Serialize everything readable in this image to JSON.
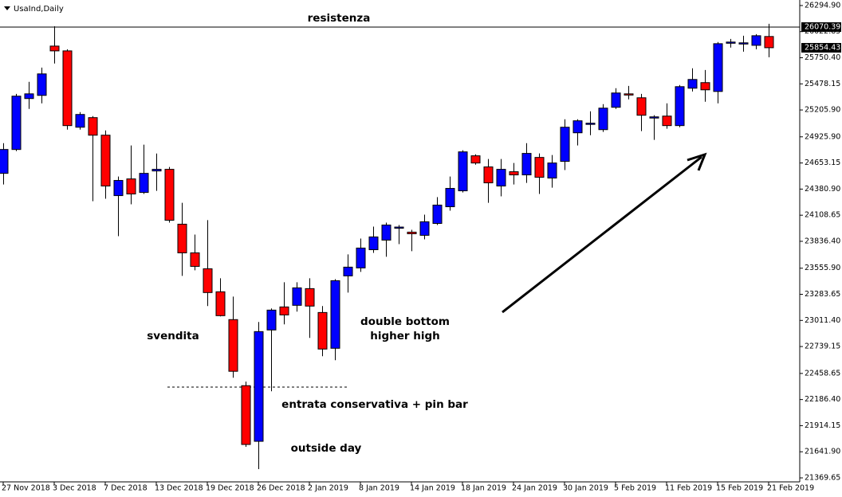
{
  "chart_data": {
    "type": "candlestick",
    "title": "UsaInd,Daily",
    "categories": [
      "27 Nov 2018",
      null,
      null,
      null,
      "3 Dec 2018",
      null,
      null,
      null,
      "7 Dec 2018",
      null,
      null,
      null,
      "13 Dec 2018",
      null,
      null,
      null,
      "19 Dec 2018",
      null,
      null,
      null,
      "26 Dec 2018",
      null,
      null,
      null,
      "2 Jan 2019",
      null,
      null,
      null,
      "8 Jan 2019",
      null,
      null,
      null,
      "14 Jan 2019",
      null,
      null,
      null,
      "18 Jan 2019",
      null,
      null,
      null,
      "24 Jan 2019",
      null,
      null,
      null,
      "30 Jan 2019",
      null,
      null,
      null,
      "5 Feb 2019",
      null,
      null,
      null,
      "11 Feb 2019",
      null,
      null,
      null,
      "15 Feb 2019",
      null,
      null,
      null,
      "21 Feb 2019"
    ],
    "open": [
      24545,
      24794,
      25325,
      25358,
      25872,
      25822,
      25026,
      25126,
      24943,
      24313,
      24487,
      24346,
      24570,
      24587,
      24015,
      23716,
      23550,
      23310,
      23020,
      22331,
      21751,
      22912,
      23152,
      23169,
      23343,
      23094,
      22721,
      23476,
      23559,
      23749,
      23849,
      23980,
      23932,
      23899,
      24023,
      24197,
      24363,
      24728,
      24612,
      24413,
      24562,
      24529,
      24711,
      24496,
      24670,
      24968,
      25060,
      25001,
      25234,
      25374,
      25333,
      25130,
      25142,
      25043,
      25433,
      25491,
      25399,
      25910,
      25902,
      25880,
      25972
    ],
    "high": [
      24860,
      25374,
      25499,
      25648,
      26079,
      25839,
      25184,
      25142,
      24993,
      24512,
      24836,
      24844,
      24752,
      24612,
      24238,
      23907,
      24057,
      23451,
      23260,
      22373,
      22995,
      23136,
      23409,
      23409,
      23451,
      23161,
      23442,
      23700,
      23865,
      23990,
      24031,
      24006,
      23957,
      24114,
      24297,
      24512,
      24786,
      24744,
      24695,
      24695,
      24653,
      24860,
      24753,
      24736,
      25109,
      25109,
      25192,
      25267,
      25433,
      25457,
      25374,
      25151,
      25275,
      25466,
      25640,
      25623,
      25914,
      25947,
      25980,
      25997,
      26104
    ],
    "low": [
      24429,
      24777,
      25217,
      25275,
      25690,
      25001,
      25001,
      24255,
      24280,
      23890,
      24222,
      24330,
      24363,
      24031,
      23476,
      23534,
      23161,
      23053,
      22414,
      21693,
      21461,
      22273,
      22970,
      23103,
      22829,
      22638,
      22597,
      23302,
      23517,
      23716,
      23675,
      23807,
      23733,
      23857,
      24006,
      24156,
      24346,
      24636,
      24238,
      24305,
      24429,
      24446,
      24330,
      24396,
      24579,
      24836,
      24943,
      24977,
      25217,
      25317,
      24985,
      24894,
      25010,
      25026,
      25399,
      25292,
      25275,
      25856,
      25814,
      25839,
      25756
    ],
    "close": [
      24794,
      25350,
      25374,
      25582,
      25822,
      25043,
      25159,
      24943,
      24413,
      24471,
      24330,
      24545,
      24587,
      24056,
      23716,
      23575,
      23302,
      23061,
      22481,
      21718,
      22895,
      23119,
      23069,
      23351,
      23161,
      22713,
      23426,
      23567,
      23766,
      23882,
      24006,
      23985,
      23915,
      24040,
      24214,
      24388,
      24769,
      24653,
      24446,
      24587,
      24529,
      24753,
      24504,
      24653,
      25026,
      25093,
      25068,
      25225,
      25383,
      25366,
      25151,
      25134,
      25043,
      25449,
      25524,
      25416,
      25897,
      25914,
      25906,
      25980,
      25855
    ],
    "up_color": "#0000ff",
    "down_color": "#ff0000",
    "ylim": [
      21328,
      26336
    ],
    "yticks": [
      {
        "value": 26294.9,
        "label": "26294.90"
      },
      {
        "value": 26022.85,
        "label": "26022.85"
      },
      {
        "value": 25750.4,
        "label": "25750.40"
      },
      {
        "value": 25478.15,
        "label": "25478.15"
      },
      {
        "value": 25205.9,
        "label": "25205.90"
      },
      {
        "value": 24925.9,
        "label": "24925.90"
      },
      {
        "value": 24653.15,
        "label": "24653.15"
      },
      {
        "value": 24380.9,
        "label": "24380.90"
      },
      {
        "value": 24108.65,
        "label": "24108.65"
      },
      {
        "value": 23836.4,
        "label": "23836.40"
      },
      {
        "value": 23555.9,
        "label": "23555.90"
      },
      {
        "value": 23283.65,
        "label": "23283.65"
      },
      {
        "value": 23011.4,
        "label": "23011.40"
      },
      {
        "value": 22739.15,
        "label": "22739.15"
      },
      {
        "value": 22458.65,
        "label": "22458.65"
      },
      {
        "value": 22186.4,
        "label": "22186.40"
      },
      {
        "value": 21914.15,
        "label": "21914.15"
      },
      {
        "value": 21641.9,
        "label": "21641.90"
      },
      {
        "value": 21369.65,
        "label": "21369.65"
      }
    ],
    "price_markers": [
      26070.39,
      25854.43
    ],
    "annotations": [
      "resistenza",
      "svendita",
      "double bottom",
      "higher high",
      "entrata conservativa + pin bar",
      "outside day"
    ]
  }
}
